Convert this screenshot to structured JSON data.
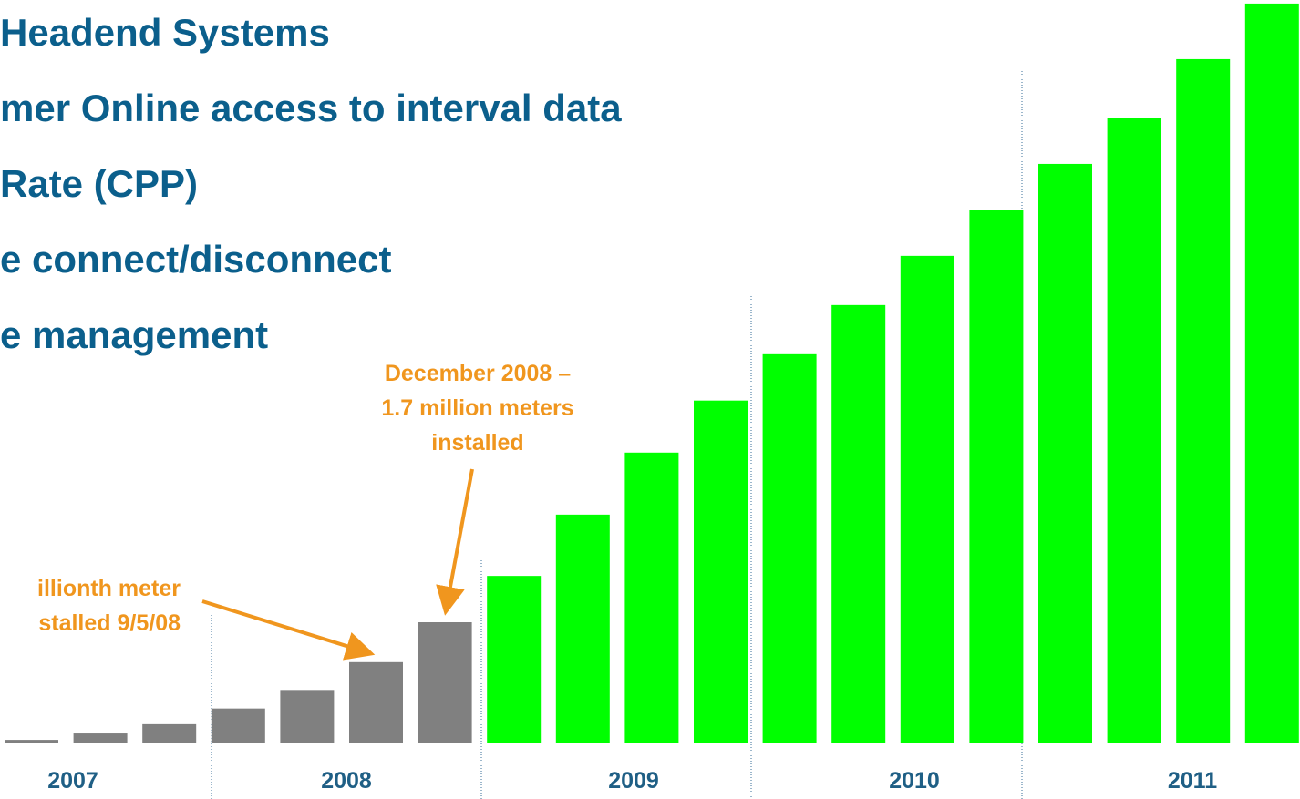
{
  "chart_data": {
    "type": "bar",
    "bullets": [
      "Headend Systems",
      "mer Online access to interval data",
      "Rate (CPP)",
      "e connect/disconnect",
      "e management"
    ],
    "annotations": [
      {
        "lines": [
          "December 2008 –",
          "1.7 million meters",
          "installed"
        ]
      },
      {
        "lines": [
          "illionth meter",
          "stalled 9/5/08"
        ]
      }
    ],
    "categories": [
      null,
      null,
      null,
      null,
      null,
      null,
      null,
      null,
      null,
      null,
      null,
      null,
      null,
      null,
      null,
      null,
      null,
      null,
      null
    ],
    "values": [
      0.05,
      0.14,
      0.27,
      0.49,
      0.75,
      1.14,
      1.7,
      2.35,
      3.21,
      4.08,
      4.81,
      5.46,
      6.15,
      6.84,
      7.48,
      8.13,
      8.78,
      9.6,
      10.38
    ],
    "colors": [
      "#808080",
      "#808080",
      "#808080",
      "#808080",
      "#808080",
      "#808080",
      "#808080",
      "#00ff00",
      "#00ff00",
      "#00ff00",
      "#00ff00",
      "#00ff00",
      "#00ff00",
      "#00ff00",
      "#00ff00",
      "#00ff00",
      "#00ff00",
      "#00ff00",
      "#00ff00"
    ],
    "groups": [
      "2007",
      "2008",
      "2009",
      "2010",
      "2011"
    ],
    "ylim": [
      0,
      10.43
    ]
  }
}
